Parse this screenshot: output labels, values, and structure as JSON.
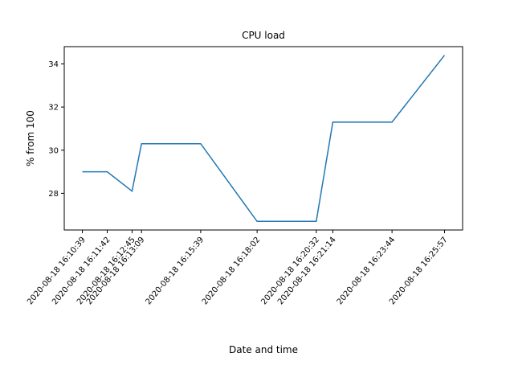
{
  "chart_data": {
    "type": "line",
    "title": "CPU load",
    "xlabel": "Date and time",
    "ylabel": "% from 100",
    "x": [
      "2020-08-18 16:10:39",
      "2020-08-18 16:11:42",
      "2020-08-18 16:12:45",
      "2020-08-18 16:13:09",
      "2020-08-18 16:15:39",
      "2020-08-18 16:18:02",
      "2020-08-18 16:20:32",
      "2020-08-18 16:21:14",
      "2020-08-18 16:23:44",
      "2020-08-18 16:25:57"
    ],
    "series": [
      {
        "values": [
          29.0,
          29.0,
          28.1,
          30.3,
          30.3,
          26.7,
          26.7,
          31.3,
          31.3,
          34.4
        ]
      }
    ],
    "ylim": [
      26.3,
      34.8
    ],
    "yticks": [
      28,
      30,
      32,
      34
    ],
    "grid": false,
    "line_color": "#1f77b4"
  }
}
